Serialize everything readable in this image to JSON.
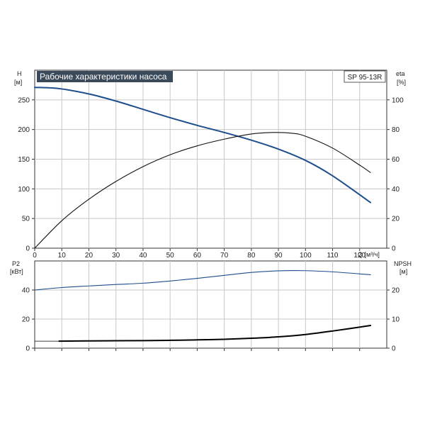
{
  "chart_data": [
    {
      "type": "line",
      "title": "Рабочие характеристики насоса",
      "model": "SP 95-13R",
      "xlabel": "Q [м³/ч]",
      "ylabel_left": "H",
      "ylabel_left_unit": "[м]",
      "ylabel_right": "eta",
      "ylabel_right_unit": "[%]",
      "xlim": [
        0,
        130
      ],
      "xticks": [
        0,
        10,
        20,
        30,
        40,
        50,
        60,
        70,
        80,
        90,
        100,
        110,
        120
      ],
      "ylim_left": [
        0,
        300
      ],
      "yticks_left": [
        0,
        50,
        100,
        150,
        200,
        250
      ],
      "ylim_right": [
        0,
        120
      ],
      "yticks_right": [
        0,
        20,
        40,
        60,
        80,
        100
      ],
      "grid": true,
      "series": [
        {
          "axis": "left",
          "color": "#1f4e8c",
          "x": [
            0,
            9,
            20,
            30,
            40,
            50,
            60,
            70,
            80,
            90,
            100,
            110,
            124
          ],
          "y": [
            271,
            269,
            260,
            248,
            234,
            220,
            207,
            195,
            182,
            167,
            148,
            122,
            77
          ]
        },
        {
          "axis": "right",
          "color": "#111111",
          "x": [
            0,
            10,
            20,
            30,
            40,
            50,
            60,
            70,
            80,
            88,
            95,
            100,
            110,
            120,
            124
          ],
          "y": [
            0,
            18.5,
            33,
            45,
            55,
            63,
            69,
            73.5,
            77,
            78,
            77.5,
            75.5,
            67.5,
            56,
            51
          ]
        }
      ]
    },
    {
      "type": "line",
      "ylabel_left": "P2",
      "ylabel_left_unit": "[кВт]",
      "ylabel_right": "NPSH",
      "ylabel_right_unit": "[м]",
      "xlim": [
        0,
        130
      ],
      "ylim_left": [
        0,
        60
      ],
      "yticks_left": [
        0,
        20,
        40
      ],
      "ylim_right": [
        0,
        30
      ],
      "yticks_right": [
        0,
        10,
        20
      ],
      "grid": true,
      "series": [
        {
          "axis": "left",
          "color": "#1f4e8c",
          "x": [
            0,
            10,
            20,
            30,
            40,
            50,
            60,
            70,
            80,
            90,
            100,
            110,
            124
          ],
          "y": [
            40,
            41.7,
            42.8,
            43.8,
            44.7,
            46.2,
            48.0,
            50.1,
            52.1,
            53.2,
            53.3,
            52.5,
            50.5
          ]
        },
        {
          "axis": "right",
          "color": "#000000",
          "x": [
            9,
            20,
            30,
            40,
            50,
            60,
            70,
            80,
            90,
            100,
            110,
            124
          ],
          "y": [
            2.4,
            2.5,
            2.55,
            2.6,
            2.7,
            2.85,
            3.05,
            3.4,
            3.9,
            4.7,
            5.9,
            7.8
          ]
        }
      ]
    }
  ]
}
